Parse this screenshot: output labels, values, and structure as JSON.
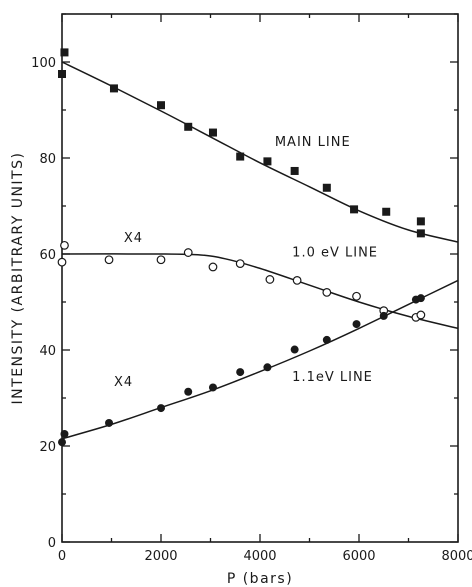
{
  "chart_data": {
    "type": "scatter",
    "title": "",
    "xlabel": "P (bars)",
    "ylabel": "INTENSITY  (ARBITRARY UNITS)",
    "xlim": [
      0,
      8000
    ],
    "ylim": [
      0,
      110
    ],
    "x_ticks": [
      0,
      2000,
      4000,
      6000,
      8000
    ],
    "y_ticks": [
      0,
      20,
      40,
      60,
      80,
      100
    ],
    "grid": false,
    "series": [
      {
        "name": "MAIN LINE",
        "marker": "filled-square",
        "points": [
          [
            0,
            97.5
          ],
          [
            50,
            102
          ],
          [
            1050,
            94.5
          ],
          [
            2000,
            91
          ],
          [
            2550,
            86.5
          ],
          [
            3050,
            85.3
          ],
          [
            3600,
            80.3
          ],
          [
            4150,
            79.3
          ],
          [
            4700,
            77.3
          ],
          [
            5350,
            73.8
          ],
          [
            5900,
            69.3
          ],
          [
            6550,
            68.8
          ],
          [
            7250,
            66.8
          ],
          [
            7250,
            64.3
          ]
        ],
        "fit_line": [
          [
            0,
            100
          ],
          [
            1000,
            95
          ],
          [
            2000,
            89.8
          ],
          [
            3000,
            84.4
          ],
          [
            4000,
            79
          ],
          [
            5000,
            74
          ],
          [
            6000,
            69
          ],
          [
            7000,
            65
          ],
          [
            8000,
            62.5
          ]
        ]
      },
      {
        "name": "1.0 eV LINE",
        "marker": "open-circle",
        "points": [
          [
            0,
            58.3
          ],
          [
            50,
            61.8
          ],
          [
            950,
            58.8
          ],
          [
            2000,
            58.8
          ],
          [
            2550,
            60.3
          ],
          [
            3050,
            57.3
          ],
          [
            3600,
            58
          ],
          [
            4200,
            54.7
          ],
          [
            4750,
            54.5
          ],
          [
            5350,
            52
          ],
          [
            5950,
            51.2
          ],
          [
            6500,
            48.2
          ],
          [
            7150,
            46.8
          ],
          [
            7250,
            47.3
          ]
        ],
        "fit_line": [
          [
            0,
            60
          ],
          [
            2000,
            60
          ],
          [
            2800,
            59.8
          ],
          [
            3300,
            59
          ],
          [
            4000,
            57
          ],
          [
            5000,
            53.5
          ],
          [
            6000,
            50
          ],
          [
            7000,
            47
          ],
          [
            8000,
            44.5
          ]
        ]
      },
      {
        "name": "1.1eV LINE",
        "marker": "filled-circle",
        "points": [
          [
            0,
            20.8
          ],
          [
            50,
            22.5
          ],
          [
            950,
            24.8
          ],
          [
            2000,
            27.9
          ],
          [
            2550,
            31.3
          ],
          [
            3050,
            32.2
          ],
          [
            3600,
            35.4
          ],
          [
            4150,
            36.4
          ],
          [
            4700,
            40.1
          ],
          [
            5350,
            42.1
          ],
          [
            5950,
            45.4
          ],
          [
            6500,
            47.1
          ],
          [
            7150,
            50.5
          ],
          [
            7250,
            50.8
          ]
        ],
        "fit_line": [
          [
            0,
            21.5
          ],
          [
            1000,
            24.5
          ],
          [
            2000,
            28
          ],
          [
            3000,
            31.5
          ],
          [
            4000,
            35.5
          ],
          [
            5000,
            39.8
          ],
          [
            6000,
            44.5
          ],
          [
            7000,
            49.5
          ],
          [
            8000,
            54.5
          ]
        ]
      }
    ],
    "annotations": [
      {
        "text": "MAIN LINE",
        "x": 4300,
        "y": 82.5
      },
      {
        "text": "X4",
        "x": 1250,
        "y": 62.5
      },
      {
        "text": "1.0 eV LINE",
        "x": 4650,
        "y": 59.5
      },
      {
        "text": "X4",
        "x": 1050,
        "y": 32.5
      },
      {
        "text": "1.1eV LINE",
        "x": 4650,
        "y": 33.5
      }
    ]
  }
}
